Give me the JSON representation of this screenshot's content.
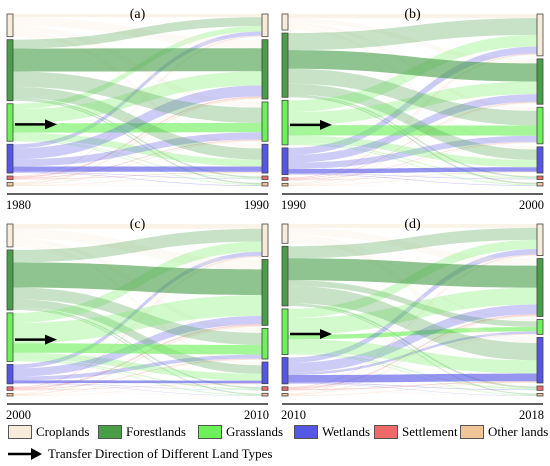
{
  "colors": {
    "Croplands": "#f7ecd9",
    "Forestlands": "#4a9e4a",
    "Grasslands": "#6ef05a",
    "Wetlands": "#5555e6",
    "Settlement": "#f06a6a",
    "Other lands": "#f2c49a"
  },
  "panels": [
    {
      "label": "(a)",
      "years": [
        "1980",
        "1990"
      ],
      "left": {
        "Croplands": 26,
        "Forestlands": 70,
        "Grasslands": 43,
        "Wetlands": 33,
        "Settlement": 4,
        "Other lands": 4
      },
      "right": {
        "Croplands": 26,
        "Forestlands": 68,
        "Grasslands": 45,
        "Wetlands": 33,
        "Settlement": 4,
        "Other lands": 4
      },
      "arrow_shown": true
    },
    {
      "label": "(b)",
      "years": [
        "1990",
        "2000"
      ],
      "left": {
        "Croplands": 18,
        "Forestlands": 72,
        "Grasslands": 50,
        "Wetlands": 30,
        "Settlement": 3,
        "Other lands": 3
      },
      "right": {
        "Croplands": 48,
        "Forestlands": 52,
        "Grasslands": 42,
        "Wetlands": 30,
        "Settlement": 4,
        "Other lands": 4
      },
      "arrow_shown": true
    },
    {
      "label": "(c)",
      "years": [
        "2000",
        "2010"
      ],
      "left": {
        "Croplands": 26,
        "Forestlands": 68,
        "Grasslands": 55,
        "Wetlands": 22,
        "Settlement": 4,
        "Other lands": 3
      },
      "right": {
        "Croplands": 36,
        "Forestlands": 73,
        "Grasslands": 34,
        "Wetlands": 24,
        "Settlement": 4,
        "Other lands": 3
      },
      "arrow_shown": true
    },
    {
      "label": "(d)",
      "years": [
        "2010",
        "2018"
      ],
      "left": {
        "Croplands": 22,
        "Forestlands": 68,
        "Grasslands": 52,
        "Wetlands": 30,
        "Settlement": 4,
        "Other lands": 3
      },
      "right": {
        "Croplands": 36,
        "Forestlands": 66,
        "Grasslands": 17,
        "Wetlands": 52,
        "Settlement": 5,
        "Other lands": 3
      },
      "arrow_shown": true
    }
  ],
  "legend": {
    "items": [
      "Croplands",
      "Forestlands",
      "Grasslands",
      "Wetlands",
      "Settlement",
      "Other lands"
    ],
    "arrow_label": "Transfer Direction of Different Land Types"
  }
}
